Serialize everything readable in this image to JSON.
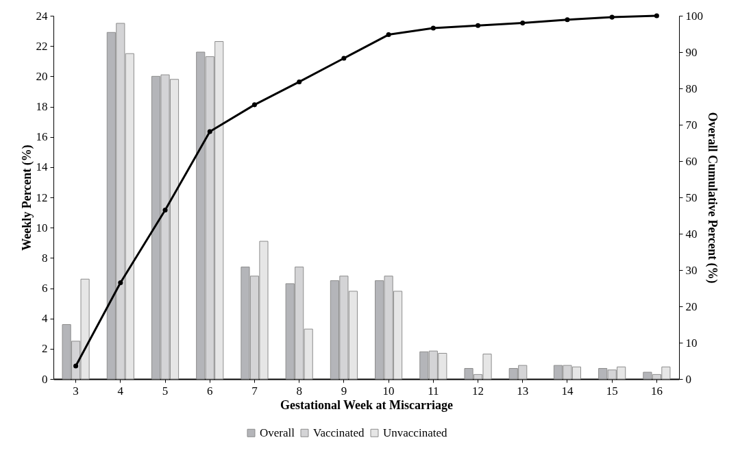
{
  "chart_data": {
    "type": "bar",
    "xlabel": "Gestational Week at Miscarriage",
    "ylabel": "Weekly Percent (%)",
    "y2label": "Overall Cumulative Percent (%)",
    "categories": [
      "3",
      "4",
      "5",
      "6",
      "7",
      "8",
      "9",
      "10",
      "11",
      "12",
      "13",
      "14",
      "15",
      "16"
    ],
    "series": [
      {
        "name": "Overall",
        "color": "#b4b5b9",
        "values": [
          3.6,
          22.9,
          20.0,
          21.6,
          7.4,
          6.3,
          6.5,
          6.5,
          1.8,
          0.7,
          0.7,
          0.9,
          0.7,
          0.45
        ]
      },
      {
        "name": "Vaccinated",
        "color": "#d4d4d6",
        "values": [
          2.5,
          23.5,
          20.1,
          21.3,
          6.8,
          7.4,
          6.8,
          6.8,
          1.85,
          0.3,
          0.9,
          0.9,
          0.6,
          0.3
        ]
      },
      {
        "name": "Unvaccinated",
        "color": "#e6e6e6",
        "values": [
          6.6,
          21.5,
          19.8,
          22.3,
          9.1,
          3.3,
          5.8,
          5.8,
          1.7,
          1.65,
          null,
          0.8,
          0.8,
          0.8
        ]
      },
      {
        "type": "line",
        "axis": "y2",
        "color": "#000000",
        "values": [
          3.6,
          26.5,
          46.5,
          68.1,
          75.5,
          81.8,
          88.3,
          94.8,
          96.6,
          97.3,
          98.0,
          98.9,
          99.6,
          100
        ]
      }
    ],
    "ylim": [
      0,
      24
    ],
    "yticks": [
      0,
      2,
      4,
      6,
      8,
      10,
      12,
      14,
      16,
      18,
      20,
      22,
      24
    ],
    "y2lim": [
      0,
      100
    ],
    "y2ticks": [
      0,
      10,
      20,
      30,
      40,
      50,
      60,
      70,
      80,
      90,
      100
    ],
    "marker": "circle",
    "grid": false,
    "legend": "bottom"
  }
}
